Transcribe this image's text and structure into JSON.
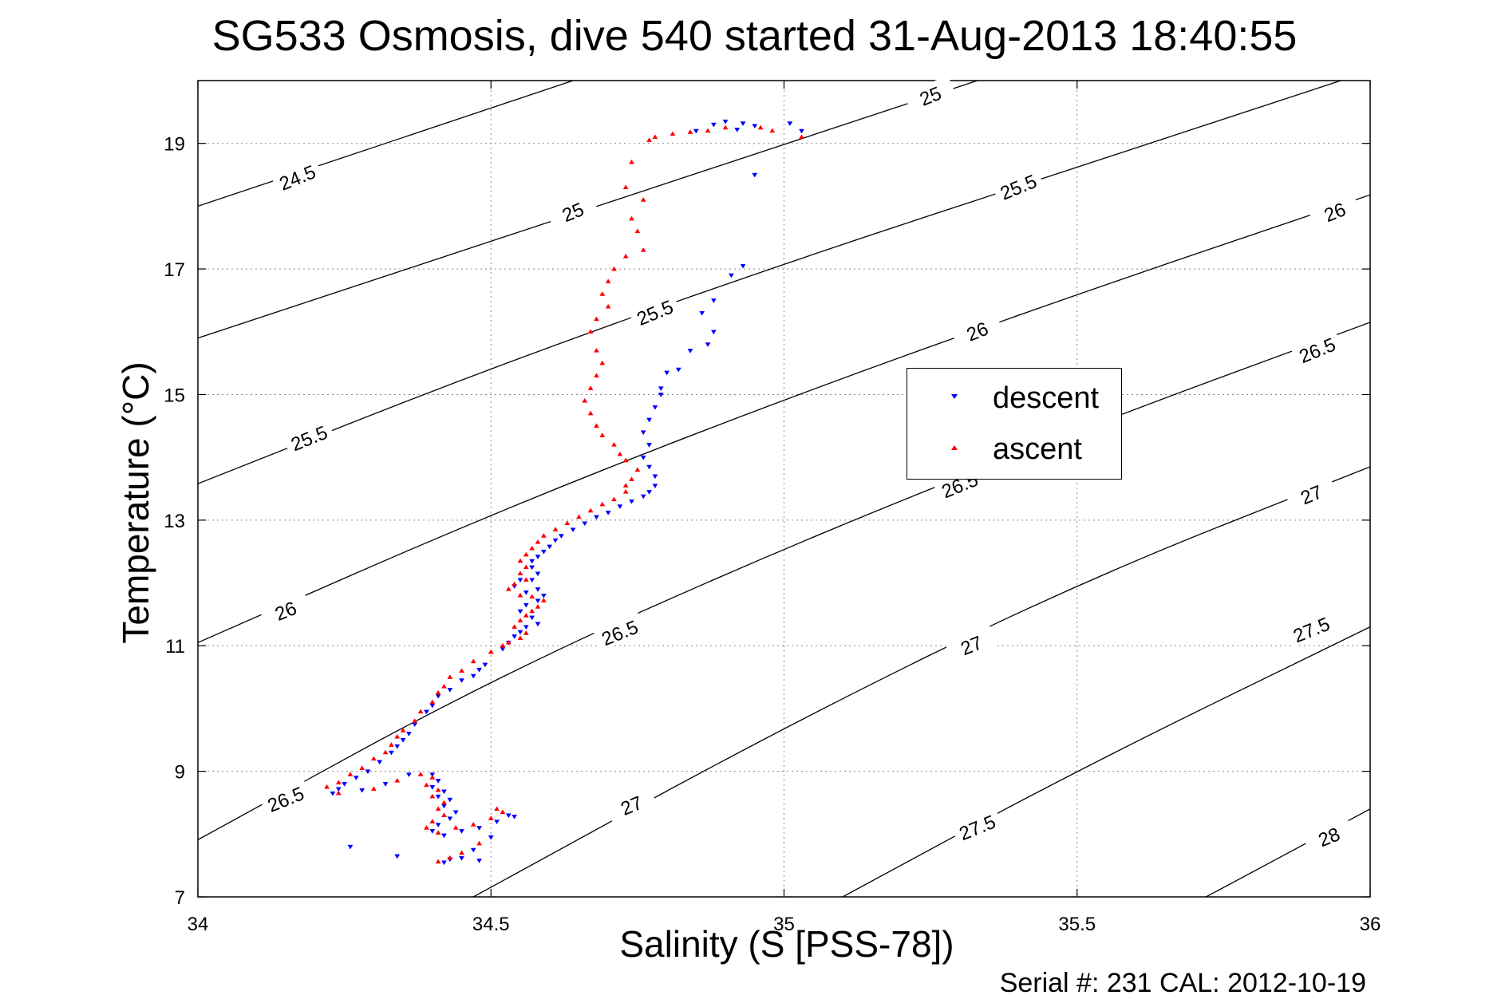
{
  "title": "SG533 Osmosis, dive 540 started 31-Aug-2013 18:40:55",
  "footer": "Serial #: 231  CAL: 2012-10-19",
  "colors": {
    "descent": "#0000ff",
    "ascent": "#ff0000",
    "contour": "#000000",
    "grid": "#888888"
  },
  "chart_data": {
    "type": "scatter",
    "xlabel": "Salinity (S [PSS-78])",
    "ylabel": "Temperature (°C)",
    "xlim": [
      34,
      36
    ],
    "ylim": [
      7,
      20
    ],
    "xticks": [
      34,
      34.5,
      35,
      35.5,
      36
    ],
    "xtick_labels": [
      "34",
      "34.5",
      "35",
      "35.5",
      "36"
    ],
    "yticks": [
      7,
      9,
      11,
      13,
      15,
      17,
      19
    ],
    "ytick_labels": [
      "7",
      "9",
      "11",
      "13",
      "15",
      "17",
      "19"
    ],
    "grid": true,
    "legend_position": "center-right",
    "legend": [
      "descent",
      "ascent"
    ],
    "density_contours": [
      {
        "level": 24.5,
        "label": "24.5",
        "points": [
          [
            34.0,
            18.0
          ],
          [
            34.64,
            20.0
          ]
        ]
      },
      {
        "level": 25.0,
        "label": "25",
        "points": [
          [
            34.0,
            15.9
          ],
          [
            35.33,
            20.0
          ]
        ]
      },
      {
        "level": 25.5,
        "label": "25.5",
        "points": [
          [
            34.0,
            13.58
          ],
          [
            34.5,
            15.43
          ],
          [
            35.0,
            17.09
          ],
          [
            35.5,
            18.62
          ],
          [
            35.95,
            20.0
          ]
        ]
      },
      {
        "level": 26.0,
        "label": "26",
        "points": [
          [
            34.0,
            11.05
          ],
          [
            34.5,
            13.1
          ],
          [
            35.0,
            14.93
          ],
          [
            35.5,
            16.6
          ],
          [
            36.0,
            18.18
          ]
        ]
      },
      {
        "level": 26.5,
        "label": "26.5",
        "points": [
          [
            34.0,
            7.91
          ],
          [
            34.5,
            10.47
          ],
          [
            35.0,
            12.56
          ],
          [
            35.5,
            14.43
          ],
          [
            36.0,
            16.15
          ]
        ]
      },
      {
        "level": 27.0,
        "label": "27",
        "points": [
          [
            34.47,
            7.0
          ],
          [
            35.0,
            9.71
          ],
          [
            35.5,
            12.0
          ],
          [
            36.0,
            13.85
          ]
        ]
      },
      {
        "level": 27.5,
        "label": "27.5",
        "points": [
          [
            35.1,
            7.0
          ],
          [
            35.5,
            9.02
          ],
          [
            36.0,
            11.3
          ]
        ]
      },
      {
        "level": 28.0,
        "label": "28",
        "points": [
          [
            35.72,
            7.0
          ],
          [
            36.0,
            8.4
          ]
        ]
      }
    ],
    "contour_labels": [
      {
        "text": "24.5",
        "x": 34.17,
        "y": 18.45
      },
      {
        "text": "25",
        "x": 34.64,
        "y": 17.9
      },
      {
        "text": "25.5",
        "x": 34.78,
        "y": 16.3
      },
      {
        "text": "25.5",
        "x": 34.19,
        "y": 14.3
      },
      {
        "text": "26",
        "x": 35.33,
        "y": 16.0
      },
      {
        "text": "25.5",
        "x": 35.4,
        "y": 18.3
      },
      {
        "text": "26",
        "x": 34.15,
        "y": 11.55
      },
      {
        "text": "26",
        "x": 35.94,
        "y": 17.9
      },
      {
        "text": "26.5",
        "x": 35.91,
        "y": 15.7
      },
      {
        "text": "26.5",
        "x": 34.72,
        "y": 11.2
      },
      {
        "text": "26.5",
        "x": 34.15,
        "y": 8.55
      },
      {
        "text": "26.5",
        "x": 35.3,
        "y": 13.55
      },
      {
        "text": "27",
        "x": 35.32,
        "y": 11.0
      },
      {
        "text": "27",
        "x": 35.9,
        "y": 13.4
      },
      {
        "text": "27",
        "x": 34.74,
        "y": 8.45
      },
      {
        "text": "25",
        "x": 35.25,
        "y": 19.75
      },
      {
        "text": "27.5",
        "x": 35.33,
        "y": 8.1
      },
      {
        "text": "27.5",
        "x": 35.9,
        "y": 11.25
      },
      {
        "text": "28",
        "x": 35.93,
        "y": 7.95
      }
    ],
    "series": [
      {
        "name": "descent",
        "marker": "triangle-down",
        "points": [
          [
            34.9,
            19.35
          ],
          [
            34.88,
            19.3
          ],
          [
            34.93,
            19.32
          ],
          [
            34.95,
            19.28
          ],
          [
            34.85,
            19.2
          ],
          [
            34.92,
            19.22
          ],
          [
            35.01,
            19.32
          ],
          [
            35.03,
            19.2
          ],
          [
            34.95,
            18.5
          ],
          [
            34.93,
            17.05
          ],
          [
            34.91,
            16.9
          ],
          [
            34.88,
            16.5
          ],
          [
            34.86,
            16.3
          ],
          [
            34.88,
            16.0
          ],
          [
            34.87,
            15.8
          ],
          [
            34.84,
            15.7
          ],
          [
            34.82,
            15.4
          ],
          [
            34.8,
            15.35
          ],
          [
            34.79,
            15.1
          ],
          [
            34.79,
            15.0
          ],
          [
            34.78,
            14.8
          ],
          [
            34.77,
            14.6
          ],
          [
            34.76,
            14.4
          ],
          [
            34.77,
            14.2
          ],
          [
            34.76,
            14.0
          ],
          [
            34.77,
            13.85
          ],
          [
            34.78,
            13.7
          ],
          [
            34.78,
            13.55
          ],
          [
            34.77,
            13.45
          ],
          [
            34.76,
            13.38
          ],
          [
            34.74,
            13.3
          ],
          [
            34.72,
            13.22
          ],
          [
            34.7,
            13.12
          ],
          [
            34.68,
            13.05
          ],
          [
            34.66,
            12.95
          ],
          [
            34.64,
            12.85
          ],
          [
            34.62,
            12.75
          ],
          [
            34.61,
            12.68
          ],
          [
            34.6,
            12.58
          ],
          [
            34.59,
            12.5
          ],
          [
            34.58,
            12.42
          ],
          [
            34.57,
            12.35
          ],
          [
            34.57,
            12.25
          ],
          [
            34.58,
            12.15
          ],
          [
            34.57,
            12.05
          ],
          [
            34.55,
            12.05
          ],
          [
            34.54,
            11.95
          ],
          [
            34.56,
            11.85
          ],
          [
            34.58,
            11.9
          ],
          [
            34.59,
            11.8
          ],
          [
            34.58,
            11.72
          ],
          [
            34.56,
            11.65
          ],
          [
            34.55,
            11.55
          ],
          [
            34.57,
            11.45
          ],
          [
            34.58,
            11.35
          ],
          [
            34.56,
            11.3
          ],
          [
            34.55,
            11.22
          ],
          [
            34.54,
            11.15
          ],
          [
            34.53,
            11.05
          ],
          [
            34.52,
            10.95
          ],
          [
            34.49,
            10.7
          ],
          [
            34.48,
            10.62
          ],
          [
            34.47,
            10.52
          ],
          [
            34.45,
            10.45
          ],
          [
            34.43,
            10.3
          ],
          [
            34.41,
            10.2
          ],
          [
            34.4,
            10.05
          ],
          [
            34.39,
            9.95
          ],
          [
            34.37,
            9.75
          ],
          [
            34.36,
            9.6
          ],
          [
            34.35,
            9.5
          ],
          [
            34.34,
            9.4
          ],
          [
            34.33,
            9.3
          ],
          [
            34.31,
            9.15
          ],
          [
            34.29,
            9.0
          ],
          [
            34.27,
            8.9
          ],
          [
            34.25,
            8.8
          ],
          [
            34.24,
            8.72
          ],
          [
            34.23,
            8.65
          ],
          [
            34.28,
            8.7
          ],
          [
            34.32,
            8.8
          ],
          [
            34.36,
            8.95
          ],
          [
            34.4,
            8.95
          ],
          [
            34.41,
            8.85
          ],
          [
            34.4,
            8.75
          ],
          [
            34.42,
            8.68
          ],
          [
            34.41,
            8.6
          ],
          [
            34.43,
            8.55
          ],
          [
            34.42,
            8.45
          ],
          [
            34.44,
            8.35
          ],
          [
            34.43,
            8.25
          ],
          [
            34.41,
            8.15
          ],
          [
            34.4,
            8.05
          ],
          [
            34.42,
            7.98
          ],
          [
            34.45,
            8.05
          ],
          [
            34.48,
            8.1
          ],
          [
            34.51,
            8.2
          ],
          [
            34.53,
            8.3
          ],
          [
            34.54,
            8.28
          ],
          [
            34.5,
            7.95
          ],
          [
            34.47,
            7.75
          ],
          [
            34.45,
            7.62
          ],
          [
            34.43,
            7.6
          ],
          [
            34.42,
            7.55
          ],
          [
            34.48,
            7.58
          ],
          [
            34.26,
            7.8
          ],
          [
            34.34,
            7.65
          ]
        ]
      },
      {
        "name": "ascent",
        "marker": "triangle-up",
        "points": [
          [
            35.03,
            19.1
          ],
          [
            34.98,
            19.2
          ],
          [
            34.96,
            19.25
          ],
          [
            34.9,
            19.25
          ],
          [
            34.87,
            19.2
          ],
          [
            34.84,
            19.18
          ],
          [
            34.81,
            19.15
          ],
          [
            34.78,
            19.1
          ],
          [
            34.77,
            19.05
          ],
          [
            34.74,
            18.7
          ],
          [
            34.73,
            18.3
          ],
          [
            34.76,
            18.1
          ],
          [
            34.74,
            17.8
          ],
          [
            34.75,
            17.6
          ],
          [
            34.76,
            17.3
          ],
          [
            34.73,
            17.2
          ],
          [
            34.71,
            17.0
          ],
          [
            34.7,
            16.8
          ],
          [
            34.69,
            16.6
          ],
          [
            34.7,
            16.4
          ],
          [
            34.68,
            16.2
          ],
          [
            34.67,
            16.0
          ],
          [
            34.68,
            15.7
          ],
          [
            34.69,
            15.5
          ],
          [
            34.68,
            15.3
          ],
          [
            34.67,
            15.1
          ],
          [
            34.66,
            14.9
          ],
          [
            34.67,
            14.7
          ],
          [
            34.68,
            14.5
          ],
          [
            34.69,
            14.35
          ],
          [
            34.71,
            14.2
          ],
          [
            34.72,
            14.05
          ],
          [
            34.73,
            13.95
          ],
          [
            34.75,
            13.8
          ],
          [
            34.74,
            13.65
          ],
          [
            34.73,
            13.55
          ],
          [
            34.73,
            13.45
          ],
          [
            34.71,
            13.33
          ],
          [
            34.69,
            13.25
          ],
          [
            34.67,
            13.15
          ],
          [
            34.65,
            13.05
          ],
          [
            34.63,
            12.95
          ],
          [
            34.61,
            12.85
          ],
          [
            34.59,
            12.75
          ],
          [
            34.58,
            12.65
          ],
          [
            34.57,
            12.55
          ],
          [
            34.56,
            12.45
          ],
          [
            34.55,
            12.35
          ],
          [
            34.56,
            12.25
          ],
          [
            34.55,
            12.15
          ],
          [
            34.56,
            12.05
          ],
          [
            34.54,
            11.98
          ],
          [
            34.53,
            11.9
          ],
          [
            34.55,
            11.8
          ],
          [
            34.57,
            11.78
          ],
          [
            34.59,
            11.72
          ],
          [
            34.58,
            11.62
          ],
          [
            34.57,
            11.55
          ],
          [
            34.56,
            11.48
          ],
          [
            34.55,
            11.4
          ],
          [
            34.54,
            11.3
          ],
          [
            34.56,
            11.2
          ],
          [
            34.55,
            11.12
          ],
          [
            34.53,
            11.05
          ],
          [
            34.52,
            11.0
          ],
          [
            34.5,
            10.9
          ],
          [
            34.47,
            10.75
          ],
          [
            34.45,
            10.6
          ],
          [
            34.43,
            10.5
          ],
          [
            34.42,
            10.35
          ],
          [
            34.41,
            10.25
          ],
          [
            34.4,
            10.1
          ],
          [
            34.38,
            9.95
          ],
          [
            34.37,
            9.8
          ],
          [
            34.35,
            9.65
          ],
          [
            34.34,
            9.55
          ],
          [
            34.33,
            9.42
          ],
          [
            34.32,
            9.3
          ],
          [
            34.3,
            9.2
          ],
          [
            34.28,
            9.05
          ],
          [
            34.26,
            8.95
          ],
          [
            34.24,
            8.82
          ],
          [
            34.22,
            8.75
          ],
          [
            34.24,
            8.65
          ],
          [
            34.3,
            8.72
          ],
          [
            34.34,
            8.85
          ],
          [
            34.38,
            8.95
          ],
          [
            34.4,
            8.9
          ],
          [
            34.39,
            8.78
          ],
          [
            34.41,
            8.7
          ],
          [
            34.4,
            8.6
          ],
          [
            34.42,
            8.5
          ],
          [
            34.41,
            8.4
          ],
          [
            34.42,
            8.3
          ],
          [
            34.4,
            8.2
          ],
          [
            34.39,
            8.1
          ],
          [
            34.41,
            8.02
          ],
          [
            34.44,
            8.1
          ],
          [
            34.47,
            8.15
          ],
          [
            34.5,
            8.25
          ],
          [
            34.52,
            8.35
          ],
          [
            34.51,
            8.4
          ],
          [
            34.48,
            7.85
          ],
          [
            34.45,
            7.7
          ],
          [
            34.43,
            7.62
          ],
          [
            34.41,
            7.56
          ]
        ]
      }
    ]
  }
}
